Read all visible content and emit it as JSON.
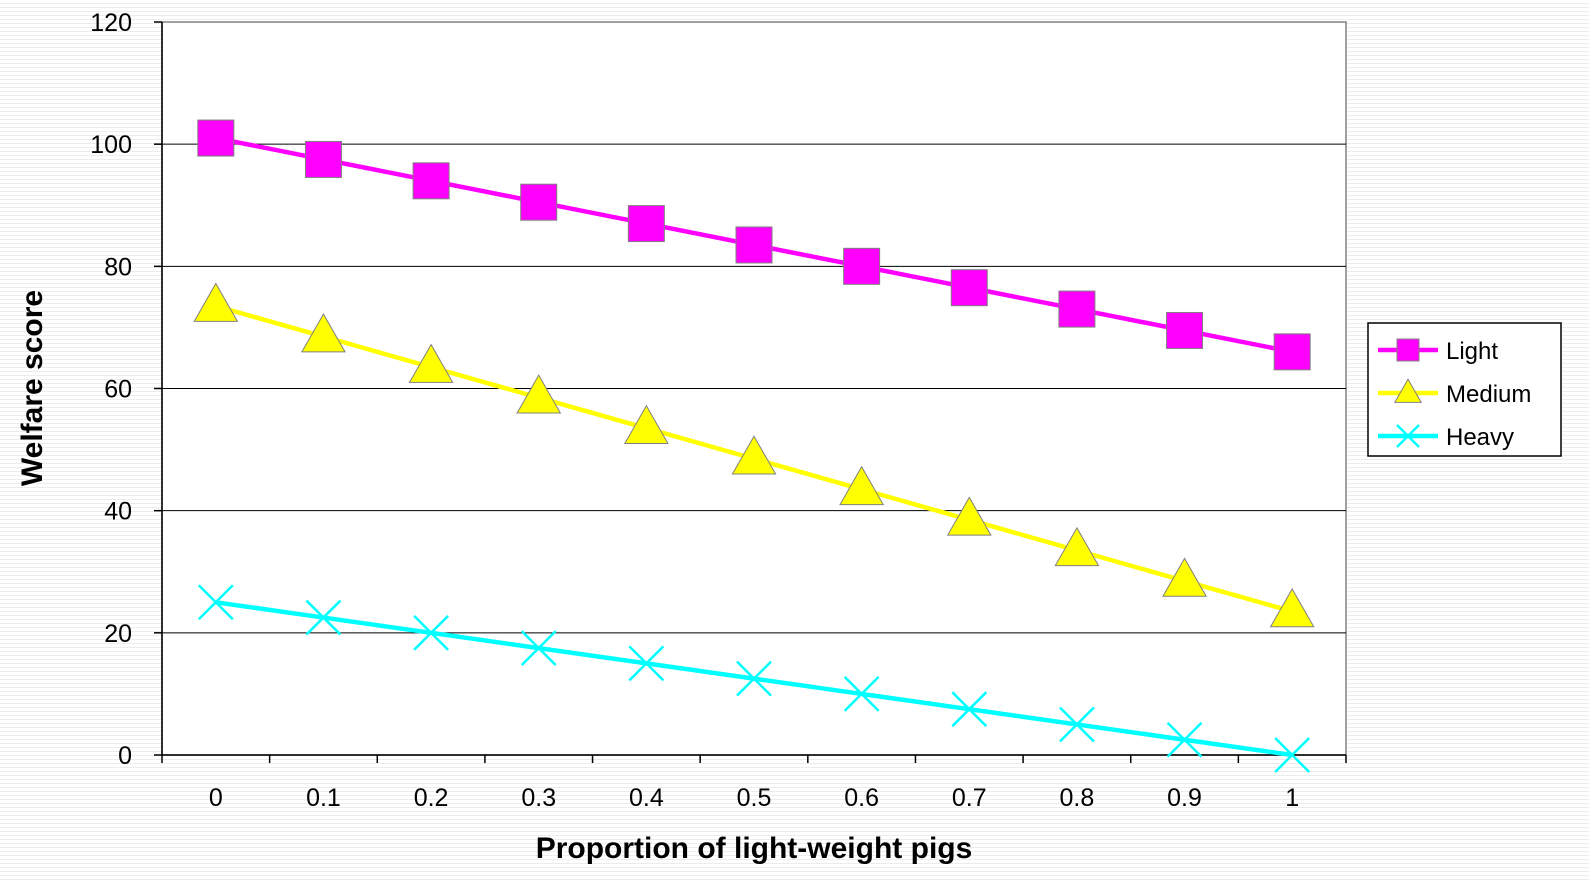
{
  "chart_data": {
    "type": "line",
    "title": "",
    "xlabel": "Proportion of light-weight pigs",
    "ylabel": "Welfare score",
    "categories": [
      "0",
      "0.1",
      "0.2",
      "0.3",
      "0.4",
      "0.5",
      "0.6",
      "0.7",
      "0.8",
      "0.9",
      "1"
    ],
    "x": [
      0,
      0.1,
      0.2,
      0.3,
      0.4,
      0.5,
      0.6,
      0.7,
      0.8,
      0.9,
      1
    ],
    "ylim": [
      0,
      120
    ],
    "yticks": [
      "0",
      "20",
      "40",
      "60",
      "80",
      "100",
      "120"
    ],
    "grid": true,
    "legend_position": "right",
    "series": [
      {
        "name": "Light",
        "color": "#ff00ff",
        "marker": "square",
        "values": [
          101,
          97.5,
          94,
          90.5,
          87,
          83.5,
          80,
          76.5,
          73,
          69.5,
          66
        ]
      },
      {
        "name": "Medium",
        "color": "#ffff00",
        "marker": "triangle",
        "values": [
          73.5,
          68.5,
          63.5,
          58.5,
          53.5,
          48.5,
          43.5,
          38.5,
          33.5,
          28.5,
          23.5
        ]
      },
      {
        "name": "Heavy",
        "color": "#00ffff",
        "marker": "x",
        "values": [
          25,
          22.5,
          20,
          17.5,
          15,
          12.5,
          10,
          7.5,
          5,
          2.5,
          0
        ]
      }
    ]
  }
}
